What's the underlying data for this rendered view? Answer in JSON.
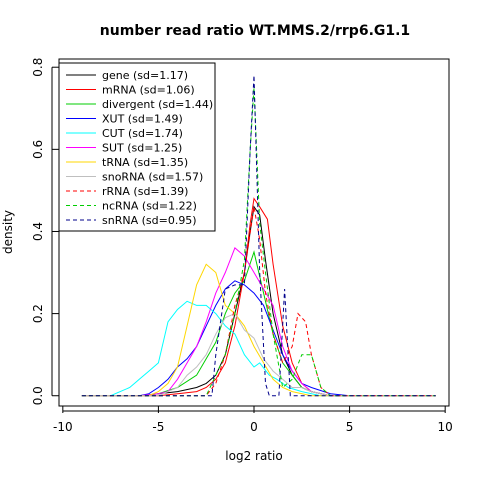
{
  "chart_data": {
    "type": "line",
    "title": "number read ratio WT.MMS.2/rrp6.G1.1",
    "xlabel": "log2 ratio",
    "ylabel": "density",
    "xlim": [
      -10.2,
      10.2
    ],
    "ylim": [
      -0.025,
      0.82
    ],
    "x_ticks": [
      -10,
      -5,
      0,
      5,
      10
    ],
    "y_ticks": [
      0.0,
      0.2,
      0.4,
      0.6,
      0.8
    ],
    "x_tick_labels": [
      "-10",
      "-5",
      "0",
      "5",
      "10"
    ],
    "y_tick_labels": [
      "0.0",
      "0.2",
      "0.4",
      "0.6",
      "0.8"
    ],
    "legend_position": "top-left",
    "grid": false,
    "series": [
      {
        "name": "gene (sd=1.17)",
        "color": "#000000",
        "dash": "solid",
        "x": [
          -9,
          -6,
          -5,
          -4,
          -3,
          -2.5,
          -2,
          -1.5,
          -1,
          -0.5,
          -0.2,
          0,
          0.3,
          0.6,
          1,
          1.5,
          2,
          2.5,
          3,
          4,
          9.5
        ],
        "y": [
          0,
          0,
          0.005,
          0.01,
          0.02,
          0.03,
          0.05,
          0.1,
          0.2,
          0.3,
          0.4,
          0.46,
          0.44,
          0.33,
          0.2,
          0.1,
          0.05,
          0.02,
          0.01,
          0,
          0
        ]
      },
      {
        "name": "mRNA (sd=1.06)",
        "color": "#ff0000",
        "dash": "solid",
        "x": [
          -9,
          -5,
          -4,
          -3,
          -2.5,
          -2,
          -1.5,
          -1,
          -0.5,
          -0.2,
          0,
          0.3,
          0.7,
          1,
          1.5,
          2,
          2.5,
          3,
          4,
          9.5
        ],
        "y": [
          0,
          0,
          0.005,
          0.01,
          0.02,
          0.04,
          0.08,
          0.17,
          0.3,
          0.42,
          0.48,
          0.46,
          0.43,
          0.32,
          0.17,
          0.08,
          0.03,
          0.01,
          0,
          0
        ]
      },
      {
        "name": "divergent (sd=1.44)",
        "color": "#00cd00",
        "dash": "solid",
        "x": [
          -9,
          -6,
          -5,
          -4,
          -3,
          -2,
          -1.5,
          -1,
          -0.5,
          0,
          0.5,
          1,
          1.5,
          2,
          2.5,
          3,
          4,
          9.5
        ],
        "y": [
          0,
          0,
          0.005,
          0.02,
          0.05,
          0.13,
          0.2,
          0.25,
          0.28,
          0.35,
          0.25,
          0.15,
          0.08,
          0.05,
          0.02,
          0.01,
          0,
          0
        ]
      },
      {
        "name": "XUT (sd=1.49)",
        "color": "#0000ff",
        "dash": "solid",
        "x": [
          -9,
          -6,
          -5.5,
          -5,
          -4.5,
          -4,
          -3.5,
          -3,
          -2.5,
          -2,
          -1.5,
          -1,
          -0.5,
          0,
          0.5,
          1,
          1.5,
          2,
          2.5,
          3,
          4,
          5,
          9.5
        ],
        "y": [
          0,
          0,
          0.005,
          0.02,
          0.04,
          0.07,
          0.09,
          0.12,
          0.17,
          0.22,
          0.26,
          0.28,
          0.27,
          0.25,
          0.22,
          0.16,
          0.1,
          0.06,
          0.03,
          0.02,
          0.005,
          0,
          0
        ]
      },
      {
        "name": "CUT (sd=1.74)",
        "color": "#00ffff",
        "dash": "solid",
        "x": [
          -9,
          -7.5,
          -7,
          -6.5,
          -6,
          -5.5,
          -5,
          -4.5,
          -4,
          -3.5,
          -3,
          -2.5,
          -2,
          -1.5,
          -1,
          -0.5,
          0,
          0.3,
          0.8,
          1.2,
          1.8,
          2.5,
          3.5,
          9.5
        ],
        "y": [
          0,
          0,
          0.01,
          0.02,
          0.04,
          0.06,
          0.08,
          0.18,
          0.21,
          0.23,
          0.22,
          0.22,
          0.2,
          0.17,
          0.15,
          0.1,
          0.07,
          0.08,
          0.05,
          0.04,
          0.02,
          0.01,
          0,
          0
        ]
      },
      {
        "name": "SUT (sd=1.25)",
        "color": "#ff00ff",
        "dash": "solid",
        "x": [
          -9,
          -6,
          -5,
          -4.5,
          -4,
          -3.5,
          -3,
          -2.5,
          -2,
          -1.5,
          -1,
          -0.5,
          0,
          0.5,
          1,
          1.5,
          2,
          2.5,
          3,
          4,
          9.5
        ],
        "y": [
          0,
          0,
          0.005,
          0.01,
          0.04,
          0.08,
          0.12,
          0.18,
          0.25,
          0.3,
          0.36,
          0.34,
          0.3,
          0.26,
          0.22,
          0.12,
          0.06,
          0.03,
          0.01,
          0,
          0
        ]
      },
      {
        "name": "tRNA (sd=1.35)",
        "color": "#ffd700",
        "dash": "solid",
        "x": [
          -9,
          -5.5,
          -5,
          -4.5,
          -4,
          -3.5,
          -3,
          -2.5,
          -2,
          -1.5,
          -1,
          -0.5,
          0,
          0.5,
          1,
          1.5,
          2,
          3,
          9.5
        ],
        "y": [
          0,
          0,
          0.01,
          0.03,
          0.07,
          0.17,
          0.27,
          0.32,
          0.3,
          0.22,
          0.2,
          0.17,
          0.12,
          0.08,
          0.04,
          0.02,
          0.01,
          0,
          0
        ]
      },
      {
        "name": "snoRNA (sd=1.57)",
        "color": "#bfbfbf",
        "dash": "solid",
        "x": [
          -9,
          -5,
          -4.5,
          -4,
          -3.5,
          -3,
          -2.5,
          -2,
          -1.5,
          -1,
          -0.5,
          0,
          0.5,
          1,
          1.5,
          2,
          2.5,
          3,
          4,
          9.5
        ],
        "y": [
          0,
          0,
          0.01,
          0.02,
          0.05,
          0.07,
          0.1,
          0.15,
          0.19,
          0.2,
          0.16,
          0.14,
          0.09,
          0.06,
          0.04,
          0.02,
          0.02,
          0.01,
          0,
          0
        ]
      },
      {
        "name": "rRNA (sd=1.39)",
        "color": "#ff0000",
        "dash": "dashed",
        "x": [
          -9,
          -2.5,
          -2,
          -1.5,
          -1,
          -0.5,
          0,
          0.3,
          0.6,
          1,
          1.5,
          2,
          2.3,
          2.7,
          3,
          3.5,
          4,
          9.5
        ],
        "y": [
          0,
          0,
          0.03,
          0.1,
          0.22,
          0.3,
          0.46,
          0.38,
          0.25,
          0.15,
          0.08,
          0.12,
          0.2,
          0.18,
          0.1,
          0.02,
          0,
          0
        ]
      },
      {
        "name": "ncRNA (sd=1.22)",
        "color": "#00cd00",
        "dash": "dashed",
        "x": [
          -9,
          -2.5,
          -2,
          -1.5,
          -1,
          -0.5,
          -0.2,
          0,
          0.3,
          0.6,
          1,
          1.5,
          2,
          2.5,
          3,
          3.5,
          4,
          9.5
        ],
        "y": [
          0,
          0,
          0.05,
          0.1,
          0.2,
          0.33,
          0.6,
          0.75,
          0.42,
          0.3,
          0.15,
          0.02,
          0.04,
          0.1,
          0.1,
          0.02,
          0,
          0
        ]
      },
      {
        "name": "snRNA (sd=0.95)",
        "color": "#00008b",
        "dash": "dashed",
        "x": [
          -9,
          -2.2,
          -2,
          -1.5,
          -1,
          -0.5,
          -0.2,
          0,
          0.3,
          0.6,
          0.8,
          1,
          1.3,
          1.6,
          1.9,
          2.2,
          9.5
        ],
        "y": [
          0,
          0,
          0.1,
          0.26,
          0.27,
          0.27,
          0.6,
          0.78,
          0.3,
          0.03,
          0,
          0,
          0,
          0.26,
          0,
          0,
          0
        ]
      }
    ]
  }
}
